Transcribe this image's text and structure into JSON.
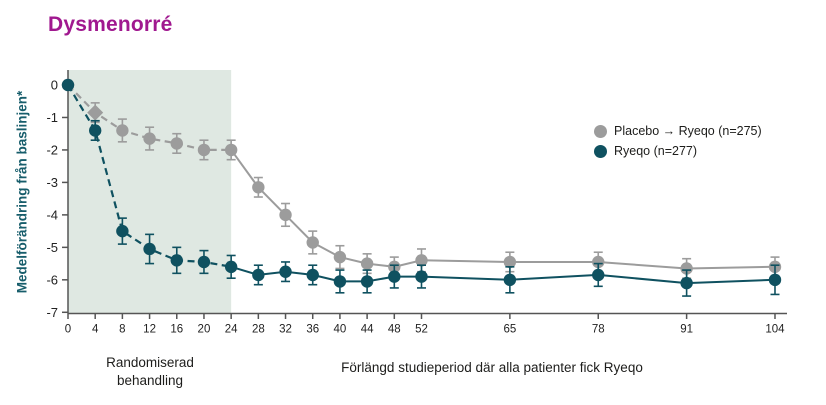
{
  "colors": {
    "title": "#a0188f",
    "placebo": "#9c9c9c",
    "ryeqo": "#0f5160",
    "ylabel": "#175d6b",
    "axis": "#555555",
    "tick_text": "#222222",
    "shade": "#dfe8e2",
    "annotation_text": "#1d1d1b"
  },
  "annotations": {
    "randomized_line1": "Randomiserad",
    "randomized_line2": "behandling",
    "extension": "Förlängd studieperiod där alla patienter fick Ryeqo"
  },
  "chart_data": {
    "type": "line",
    "title": "Dysmenorré",
    "xlabel": "",
    "ylabel": "Medelförändring från baslinjen*",
    "x": [
      0,
      4,
      8,
      12,
      16,
      20,
      24,
      28,
      32,
      36,
      40,
      44,
      48,
      52,
      65,
      78,
      91,
      104
    ],
    "yticks": [
      0,
      -1,
      -2,
      -3,
      -4,
      -5,
      -6,
      -7
    ],
    "ylim": [
      -7,
      0.5
    ],
    "xlim": [
      0,
      104
    ],
    "grid": false,
    "legend_position": "right",
    "dashed_until_week": 24,
    "randomized_period_weeks": [
      0,
      24
    ],
    "series": [
      {
        "name": "Placebo → Ryeqo (n=275)",
        "color": "#9c9c9c",
        "marker": "circle",
        "diamond_marker_weeks": [
          4
        ],
        "values": [
          0,
          -0.85,
          -1.4,
          -1.65,
          -1.8,
          -2.0,
          -2.0,
          -3.15,
          -4.0,
          -4.85,
          -5.3,
          -5.5,
          -5.6,
          -5.4,
          -5.45,
          -5.45,
          -5.65,
          -5.6
        ],
        "errors": [
          0,
          0.3,
          0.35,
          0.35,
          0.3,
          0.3,
          0.3,
          0.3,
          0.35,
          0.35,
          0.35,
          0.3,
          0.3,
          0.35,
          0.3,
          0.3,
          0.3,
          0.3
        ]
      },
      {
        "name": "Ryeqo (n=277)",
        "color": "#0f5160",
        "marker": "circle",
        "diamond_marker_weeks": [],
        "values": [
          0,
          -1.4,
          -4.5,
          -5.05,
          -5.4,
          -5.45,
          -5.6,
          -5.85,
          -5.75,
          -5.85,
          -6.05,
          -6.05,
          -5.9,
          -5.9,
          -6.0,
          -5.85,
          -6.1,
          -6.0
        ],
        "errors": [
          0,
          0.3,
          0.4,
          0.45,
          0.4,
          0.35,
          0.35,
          0.3,
          0.3,
          0.3,
          0.35,
          0.35,
          0.35,
          0.35,
          0.4,
          0.35,
          0.4,
          0.45
        ]
      }
    ]
  }
}
